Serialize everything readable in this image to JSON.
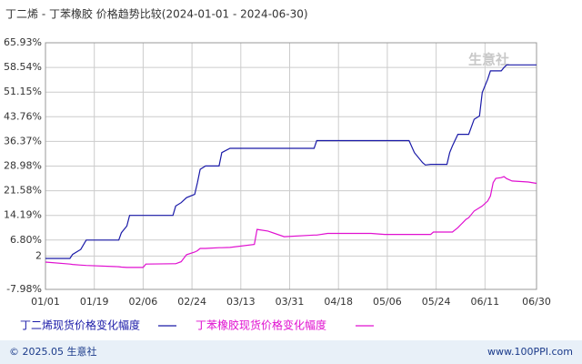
{
  "chart_data": {
    "type": "line",
    "title": "丁二烯 - 丁苯橡胶 价格趋势比较(2024-01-01 - 2024-06-30)",
    "watermark": "生意社",
    "footer_left": "© 2025.05 生意社",
    "footer_right": "www.100PPI.com",
    "grid": true,
    "xlim": [
      0,
      181
    ],
    "xticks": [
      {
        "value": 0,
        "label": "01/01"
      },
      {
        "value": 18,
        "label": "01/19"
      },
      {
        "value": 36,
        "label": "02/06"
      },
      {
        "value": 54,
        "label": "02/24"
      },
      {
        "value": 72,
        "label": "03/13"
      },
      {
        "value": 90,
        "label": "03/31"
      },
      {
        "value": 108,
        "label": "04/18"
      },
      {
        "value": 126,
        "label": "05/06"
      },
      {
        "value": 144,
        "label": "05/24"
      },
      {
        "value": 162,
        "label": "06/11"
      },
      {
        "value": 181,
        "label": "06/30"
      }
    ],
    "ylim": [
      -7.98,
      65.93
    ],
    "yticks": [
      {
        "value": 65.93,
        "label": "65.93%"
      },
      {
        "value": 58.54,
        "label": "58.54%"
      },
      {
        "value": 51.15,
        "label": "51.15%"
      },
      {
        "value": 43.76,
        "label": "43.76%"
      },
      {
        "value": 36.37,
        "label": "36.37%"
      },
      {
        "value": 28.98,
        "label": "28.98%"
      },
      {
        "value": 21.58,
        "label": "21.58%"
      },
      {
        "value": 14.19,
        "label": "14.19%"
      },
      {
        "value": 6.8,
        "label": "6.80%"
      },
      2,
      {
        "value": -7.98,
        "label": "-7.98%"
      }
    ],
    "x": [
      0,
      9,
      10,
      13,
      15,
      27,
      28,
      30,
      31,
      36,
      37,
      47,
      48,
      50,
      52,
      55,
      56,
      57,
      59,
      64,
      65,
      68,
      77,
      78,
      82,
      88,
      99,
      100,
      104,
      120,
      125,
      134,
      136,
      139,
      140,
      142,
      143,
      148,
      149,
      150,
      152,
      155,
      156,
      158,
      160,
      161,
      163,
      164,
      165,
      166,
      168,
      169,
      170,
      172,
      178,
      181
    ],
    "series": [
      {
        "name": "丁二烯现货价格变化幅度",
        "color": "#1a1aa8",
        "values": [
          1.3,
          1.3,
          2.5,
          4,
          6.8,
          6.8,
          9,
          11,
          14.2,
          14.2,
          14.2,
          14.2,
          17,
          18,
          19.5,
          20.5,
          24,
          28,
          29,
          29,
          33,
          34.3,
          34.3,
          34.3,
          34.3,
          34.3,
          34.3,
          36.6,
          36.6,
          36.6,
          36.6,
          36.6,
          33,
          30,
          29.3,
          29.5,
          29.5,
          29.5,
          33,
          35,
          38.5,
          38.5,
          38.5,
          43,
          44,
          51,
          55,
          57.5,
          57.5,
          57.5,
          57.5,
          58.5,
          59.3,
          59.3,
          59.3,
          59.3
        ]
      },
      {
        "name": "丁苯橡胶现货价格变化幅度",
        "color": "#e010d0",
        "values": [
          0.2,
          -0.4,
          -0.5,
          -0.7,
          -0.8,
          -1.2,
          -1.3,
          -1.4,
          -1.4,
          -1.4,
          -0.4,
          -0.3,
          -0.3,
          0.3,
          2.4,
          3.2,
          3.6,
          4.3,
          4.3,
          4.5,
          4.5,
          4.6,
          5.5,
          10,
          9.5,
          7.8,
          8.3,
          8.3,
          8.8,
          8.8,
          8.5,
          8.5,
          8.5,
          8.5,
          8.5,
          8.5,
          9.2,
          9.2,
          9.2,
          9.2,
          10.5,
          13,
          13.5,
          15.5,
          16.5,
          17,
          18.5,
          20,
          24,
          25.3,
          25.5,
          25.8,
          25.2,
          24.5,
          24.2,
          23.8
        ]
      }
    ]
  }
}
